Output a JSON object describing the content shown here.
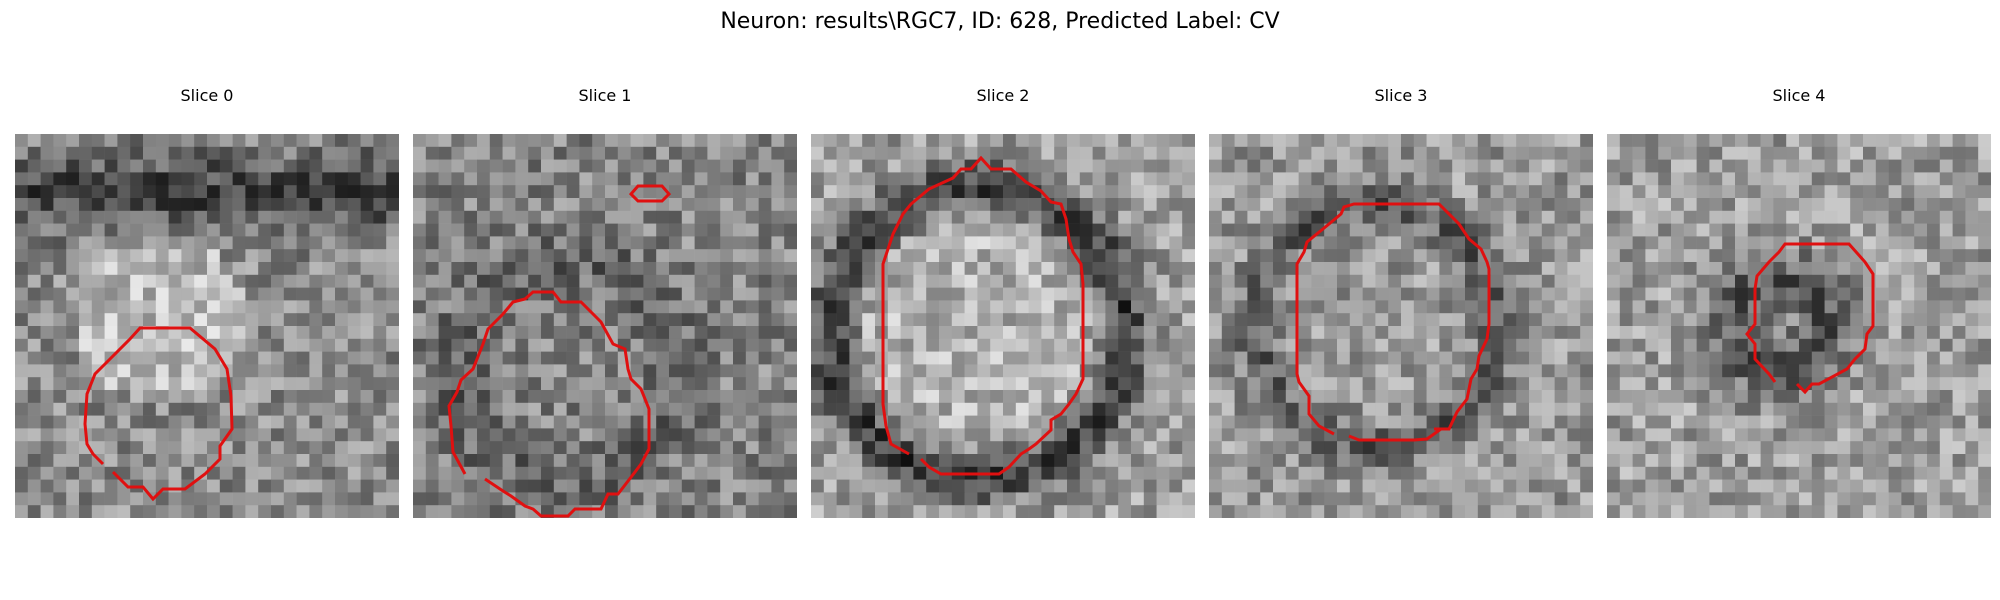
{
  "figure": {
    "title": "Neuron: results\\RGC7, ID: 628, Predicted Label: CV"
  },
  "contour_color": "#e01010",
  "panels": [
    {
      "title": "Slice 0"
    },
    {
      "title": "Slice 1"
    },
    {
      "title": "Slice 2"
    },
    {
      "title": "Slice 3"
    },
    {
      "title": "Slice 4"
    }
  ]
}
